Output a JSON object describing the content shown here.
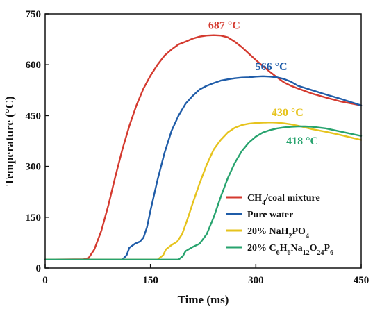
{
  "chart_data": {
    "type": "line",
    "title": "",
    "xlabel": "Time (ms)",
    "ylabel": "Temperature (°C)",
    "xlim": [
      0,
      450
    ],
    "ylim": [
      0,
      750
    ],
    "xticks": [
      0,
      150,
      300,
      450
    ],
    "yticks": [
      0,
      150,
      300,
      450,
      600,
      750
    ],
    "grid": false,
    "legend_position": "bottom-right",
    "series": [
      {
        "name": "CH4/coal mixture",
        "name_parts": [
          [
            "CH",
            "n"
          ],
          [
            "4",
            "sub"
          ],
          [
            "/coal mixture",
            "n"
          ]
        ],
        "color": "#d43a2f",
        "x": [
          0,
          55,
          62,
          70,
          80,
          90,
          100,
          110,
          120,
          130,
          140,
          150,
          160,
          170,
          180,
          190,
          200,
          210,
          220,
          230,
          240,
          250,
          260,
          270,
          280,
          290,
          300,
          310,
          320,
          330,
          340,
          350,
          360,
          380,
          400,
          420,
          450
        ],
        "y": [
          25,
          26,
          30,
          55,
          110,
          185,
          270,
          350,
          420,
          480,
          530,
          568,
          600,
          627,
          645,
          660,
          668,
          677,
          683,
          686,
          687,
          686,
          681,
          668,
          652,
          633,
          614,
          596,
          579,
          563,
          548,
          538,
          530,
          515,
          503,
          492,
          480
        ]
      },
      {
        "name": "Pure water",
        "name_parts": [
          [
            "Pure water",
            "n"
          ]
        ],
        "color": "#1f5ca8",
        "x": [
          0,
          110,
          116,
          120,
          128,
          135,
          140,
          145,
          150,
          160,
          170,
          180,
          190,
          200,
          210,
          220,
          230,
          240,
          250,
          260,
          270,
          280,
          290,
          300,
          310,
          320,
          330,
          340,
          350,
          360,
          380,
          400,
          420,
          450
        ],
        "y": [
          25,
          25,
          38,
          60,
          72,
          78,
          90,
          120,
          170,
          260,
          340,
          405,
          450,
          485,
          508,
          527,
          538,
          546,
          553,
          557,
          560,
          562,
          563,
          565,
          566,
          565,
          563,
          558,
          550,
          538,
          525,
          512,
          500,
          480
        ]
      },
      {
        "name": "20% NaH2PO4",
        "name_parts": [
          [
            "20% NaH",
            "n"
          ],
          [
            "2",
            "sub"
          ],
          [
            "PO",
            "n"
          ],
          [
            "4",
            "sub"
          ]
        ],
        "color": "#e6c31d",
        "x": [
          0,
          160,
          168,
          172,
          180,
          188,
          195,
          202,
          210,
          220,
          230,
          240,
          250,
          260,
          270,
          280,
          290,
          300,
          310,
          320,
          330,
          340,
          350,
          360,
          370,
          380,
          400,
          420,
          450
        ],
        "y": [
          25,
          25,
          38,
          55,
          68,
          78,
          100,
          140,
          190,
          250,
          305,
          350,
          378,
          400,
          414,
          422,
          426,
          428,
          429,
          430,
          429,
          427,
          424,
          420,
          415,
          410,
          402,
          393,
          378
        ]
      },
      {
        "name": "20% C6H6Na12O24P6",
        "name_parts": [
          [
            "20% C",
            "n"
          ],
          [
            "6",
            "sub"
          ],
          [
            "H",
            "n"
          ],
          [
            "6",
            "sub"
          ],
          [
            "Na",
            "n"
          ],
          [
            "12",
            "sub"
          ],
          [
            "O",
            "n"
          ],
          [
            "24",
            "sub"
          ],
          [
            "P",
            "n"
          ],
          [
            "6",
            "sub"
          ]
        ],
        "color": "#27a36e",
        "x": [
          0,
          190,
          196,
          200,
          210,
          220,
          230,
          240,
          250,
          260,
          270,
          280,
          290,
          300,
          310,
          320,
          330,
          340,
          350,
          360,
          370,
          380,
          400,
          420,
          450
        ],
        "y": [
          25,
          25,
          35,
          50,
          62,
          72,
          100,
          150,
          210,
          265,
          310,
          345,
          370,
          388,
          400,
          407,
          412,
          415,
          417,
          418,
          418,
          417,
          412,
          403,
          390
        ]
      }
    ],
    "annotations": [
      {
        "text": "687 °C",
        "x": 255,
        "y": 687,
        "color": "#d43a2f"
      },
      {
        "text": "566 °C",
        "x": 322,
        "y": 566,
        "color": "#1f5ca8"
      },
      {
        "text": "430 °C",
        "x": 345,
        "y": 430,
        "color": "#e6c31d"
      },
      {
        "text": "418 °C",
        "x": 366,
        "y": 418,
        "color": "#27a36e"
      }
    ]
  }
}
